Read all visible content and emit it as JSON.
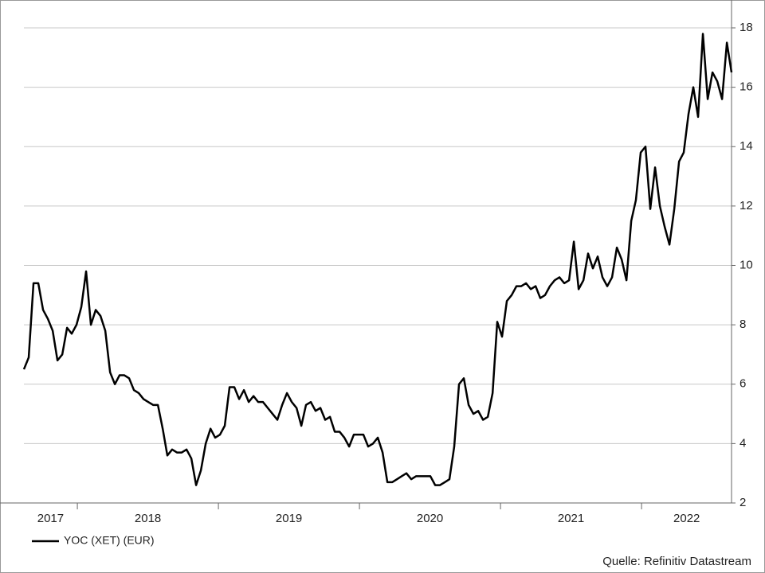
{
  "chart_data": {
    "type": "line",
    "series": [
      {
        "name": "YOC (XET) (EUR)",
        "color": "#000000",
        "x": [
          2017.621,
          2017.655,
          2017.689,
          2017.723,
          2017.757,
          2017.791,
          2017.825,
          2017.859,
          2017.893,
          2017.927,
          2017.96,
          2017.994,
          2018.028,
          2018.062,
          2018.096,
          2018.13,
          2018.164,
          2018.198,
          2018.232,
          2018.266,
          2018.299,
          2018.333,
          2018.367,
          2018.401,
          2018.435,
          2018.469,
          2018.503,
          2018.537,
          2018.571,
          2018.605,
          2018.638,
          2018.672,
          2018.706,
          2018.74,
          2018.774,
          2018.808,
          2018.842,
          2018.876,
          2018.91,
          2018.944,
          2018.977,
          2019.011,
          2019.045,
          2019.079,
          2019.113,
          2019.147,
          2019.181,
          2019.215,
          2019.249,
          2019.282,
          2019.316,
          2019.35,
          2019.384,
          2019.418,
          2019.452,
          2019.486,
          2019.52,
          2019.554,
          2019.588,
          2019.621,
          2019.655,
          2019.689,
          2019.723,
          2019.757,
          2019.791,
          2019.825,
          2019.859,
          2019.893,
          2019.927,
          2019.96,
          2019.994,
          2020.028,
          2020.062,
          2020.096,
          2020.13,
          2020.164,
          2020.198,
          2020.232,
          2020.266,
          2020.299,
          2020.333,
          2020.367,
          2020.401,
          2020.435,
          2020.469,
          2020.503,
          2020.537,
          2020.571,
          2020.605,
          2020.638,
          2020.672,
          2020.706,
          2020.74,
          2020.774,
          2020.808,
          2020.842,
          2020.876,
          2020.91,
          2020.944,
          2020.977,
          2021.011,
          2021.045,
          2021.079,
          2021.113,
          2021.147,
          2021.181,
          2021.215,
          2021.249,
          2021.282,
          2021.316,
          2021.35,
          2021.384,
          2021.418,
          2021.452,
          2021.486,
          2021.52,
          2021.554,
          2021.588,
          2021.621,
          2021.655,
          2021.689,
          2021.723,
          2021.757,
          2021.791,
          2021.825,
          2021.859,
          2021.893,
          2021.927,
          2021.96,
          2021.994,
          2022.028,
          2022.062,
          2022.096,
          2022.13,
          2022.164,
          2022.198,
          2022.232,
          2022.266,
          2022.299,
          2022.333,
          2022.367,
          2022.401,
          2022.435,
          2022.469,
          2022.503,
          2022.537,
          2022.571,
          2022.605,
          2022.638
        ],
        "values": [
          6.5,
          6.9,
          9.4,
          9.4,
          8.5,
          8.2,
          7.8,
          6.8,
          7.0,
          7.9,
          7.7,
          8.0,
          8.6,
          9.8,
          8.0,
          8.5,
          8.3,
          7.8,
          6.4,
          6.0,
          6.3,
          6.3,
          6.2,
          5.8,
          5.7,
          5.5,
          5.4,
          5.3,
          5.3,
          4.5,
          3.6,
          3.8,
          3.7,
          3.7,
          3.8,
          3.5,
          2.6,
          3.1,
          4.0,
          4.5,
          4.2,
          4.3,
          4.6,
          5.9,
          5.9,
          5.5,
          5.8,
          5.4,
          5.6,
          5.4,
          5.4,
          5.2,
          5.0,
          4.8,
          5.3,
          5.7,
          5.4,
          5.2,
          4.6,
          5.3,
          5.4,
          5.1,
          5.2,
          4.8,
          4.9,
          4.4,
          4.4,
          4.2,
          3.9,
          4.3,
          4.3,
          4.3,
          3.9,
          4.0,
          4.2,
          3.7,
          2.7,
          2.7,
          2.8,
          2.9,
          3.0,
          2.8,
          2.9,
          2.9,
          2.9,
          2.9,
          2.6,
          2.6,
          2.7,
          2.8,
          3.9,
          6.0,
          6.2,
          5.3,
          5.0,
          5.1,
          4.8,
          4.9,
          5.7,
          8.1,
          7.6,
          8.8,
          9.0,
          9.3,
          9.3,
          9.4,
          9.2,
          9.3,
          8.9,
          9.0,
          9.3,
          9.5,
          9.6,
          9.4,
          9.5,
          10.8,
          9.2,
          9.5,
          10.4,
          9.9,
          10.3,
          9.6,
          9.3,
          9.6,
          10.6,
          10.2,
          9.5,
          11.5,
          12.2,
          13.8,
          14.0,
          11.9,
          13.3,
          12.0,
          11.3,
          10.7,
          11.9,
          13.5,
          13.8,
          15.1,
          16.0,
          15.0,
          17.8,
          15.6,
          16.5,
          16.2,
          15.6,
          17.5,
          16.5
        ]
      }
    ],
    "xlim": [
      2017.621,
      2022.638
    ],
    "xticks": [
      {
        "value": 2017.81,
        "label": "2017"
      },
      {
        "value": 2018.5,
        "label": "2018"
      },
      {
        "value": 2019.5,
        "label": "2019"
      },
      {
        "value": 2020.5,
        "label": "2020"
      },
      {
        "value": 2021.5,
        "label": "2021"
      },
      {
        "value": 2022.32,
        "label": "2022"
      }
    ],
    "year_boundaries": [
      2018,
      2019,
      2020,
      2021,
      2022
    ],
    "ylim": [
      2,
      18
    ],
    "yticks": [
      2,
      4,
      6,
      8,
      10,
      12,
      14,
      16,
      18
    ],
    "grid": true,
    "legend": "bottom-left",
    "source": "Quelle: Refinitiv Datastream"
  }
}
